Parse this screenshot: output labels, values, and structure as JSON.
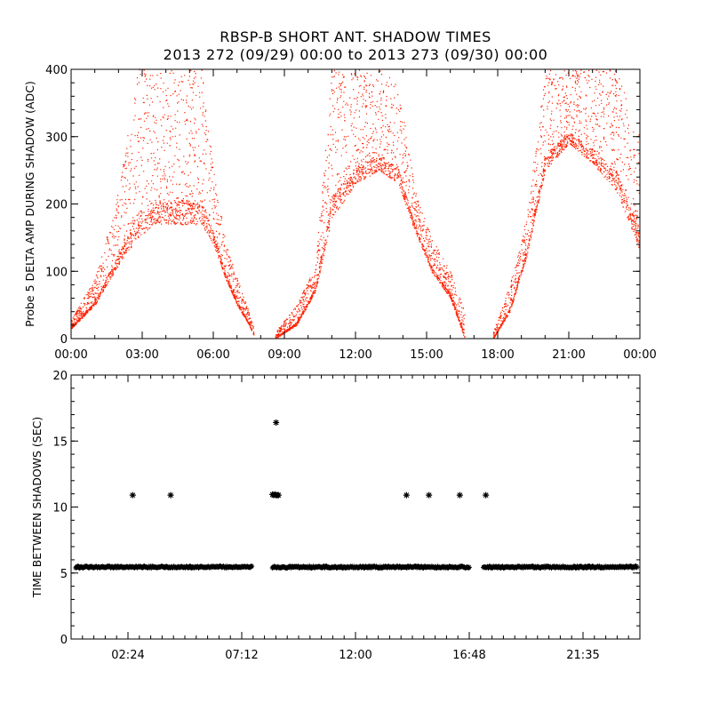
{
  "figure": {
    "title": "RBSP-B SHORT ANT. SHADOW TIMES",
    "subtitle": "2013 272 (09/29) 00:00 to 2013 273 (09/30) 00:00"
  },
  "chart_data": [
    {
      "type": "scatter",
      "ylabel": "Probe 5 DELTA AMP DURING SHADOW (ADC)",
      "xlabel": "",
      "xunit": "hour of day",
      "xlim": [
        0,
        24
      ],
      "ylim": [
        0,
        400
      ],
      "xtick_values": [
        0,
        3,
        6,
        9,
        12,
        15,
        18,
        21,
        24
      ],
      "xtick_labels": [
        "00:00",
        "03:00",
        "06:00",
        "09:00",
        "12:00",
        "15:00",
        "18:00",
        "21:00",
        "00:00"
      ],
      "ytick_values": [
        0,
        100,
        200,
        300,
        400
      ],
      "ytick_labels": [
        "0",
        "100",
        "200",
        "300",
        "400"
      ],
      "color": "#ff2000",
      "marker": "dot",
      "grid": false,
      "series_envelope": [
        {
          "segment": 1,
          "x": [
            0.0,
            1.0,
            2.0,
            2.8,
            3.5,
            4.5,
            5.5,
            6.0,
            6.5,
            7.0,
            7.5,
            7.7
          ],
          "y_low": [
            15,
            50,
            110,
            150,
            170,
            170,
            170,
            140,
            90,
            50,
            20,
            5
          ],
          "y_high": [
            30,
            90,
            220,
            400,
            400,
            400,
            400,
            250,
            150,
            90,
            40,
            15
          ]
        },
        {
          "segment": 2,
          "x": [
            8.6,
            9.5,
            10.3,
            11.0,
            12.0,
            13.0,
            13.8,
            14.5,
            15.2,
            16.0,
            16.6
          ],
          "y_low": [
            0,
            20,
            70,
            180,
            230,
            250,
            230,
            160,
            100,
            60,
            0
          ],
          "y_high": [
            10,
            50,
            110,
            400,
            400,
            400,
            380,
            220,
            150,
            100,
            40
          ]
        },
        {
          "segment": 3,
          "x": [
            17.8,
            18.5,
            19.2,
            20.0,
            21.0,
            22.0,
            23.0,
            24.0
          ],
          "y_low": [
            0,
            40,
            120,
            250,
            290,
            260,
            220,
            130
          ],
          "y_high": [
            10,
            80,
            180,
            400,
            400,
            400,
            400,
            300
          ]
        }
      ]
    },
    {
      "type": "scatter",
      "ylabel": "TIME BETWEEN SHADOWS (SEC)",
      "xlabel": "",
      "xunit": "hour of day",
      "xlim": [
        0,
        24
      ],
      "ylim": [
        0,
        20
      ],
      "xtick_values": [
        2.4,
        7.2,
        12.0,
        16.8,
        21.6
      ],
      "xtick_labels": [
        "02:24",
        "07:12",
        "12:00",
        "16:48",
        "21:35"
      ],
      "ytick_values": [
        0,
        5,
        10,
        15,
        20
      ],
      "ytick_labels": [
        "0",
        "5",
        "10",
        "15",
        "20"
      ],
      "color": "#000000",
      "marker": "asterisk",
      "grid": false,
      "baseline": {
        "value": 5.45,
        "segments": [
          [
            0.2,
            7.65
          ],
          [
            8.5,
            16.8
          ],
          [
            17.4,
            23.9
          ]
        ]
      },
      "points": [
        {
          "x": 2.6,
          "y": 10.9
        },
        {
          "x": 4.2,
          "y": 10.9
        },
        {
          "x": 8.5,
          "y": 10.95
        },
        {
          "x": 8.55,
          "y": 10.9
        },
        {
          "x": 8.6,
          "y": 10.95
        },
        {
          "x": 8.65,
          "y": 10.9
        },
        {
          "x": 8.7,
          "y": 10.9
        },
        {
          "x": 8.75,
          "y": 10.9
        },
        {
          "x": 8.65,
          "y": 16.4
        },
        {
          "x": 14.15,
          "y": 10.9
        },
        {
          "x": 15.1,
          "y": 10.9
        },
        {
          "x": 16.4,
          "y": 10.9
        },
        {
          "x": 17.5,
          "y": 10.9
        }
      ]
    }
  ]
}
